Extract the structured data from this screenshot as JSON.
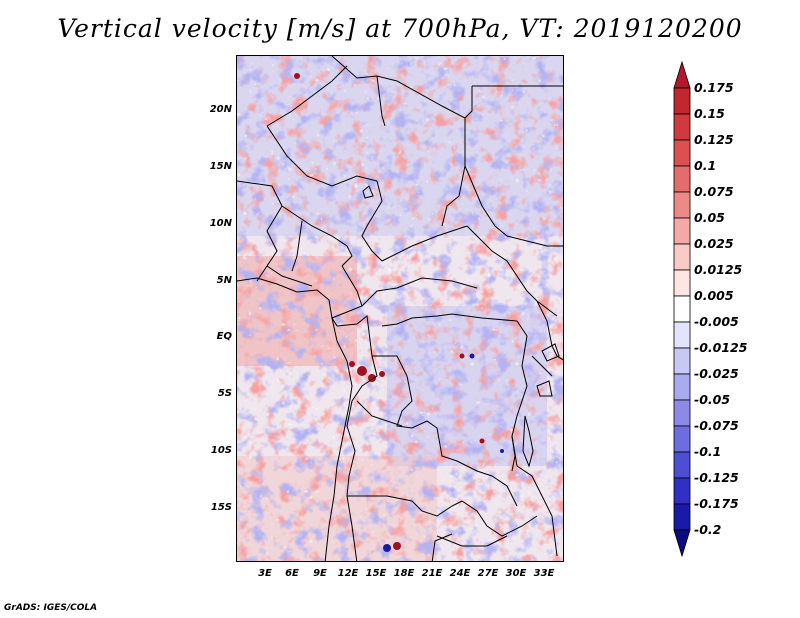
{
  "title": "Vertical velocity [m/s] at 700hPa, VT: 2019120200",
  "credit": "GrADS: IGES/COLA",
  "map": {
    "variable": "Vertical velocity",
    "units": "m/s",
    "level": "700hPa",
    "valid_time": "2019120200",
    "lat_range": [
      -20,
      25
    ],
    "lon_range": [
      0,
      36
    ],
    "lat_labels": [
      "20N",
      "15N",
      "10N",
      "5N",
      "EQ",
      "5S",
      "10S",
      "15S"
    ],
    "lat_values": [
      20,
      15,
      10,
      5,
      0,
      -5,
      -10,
      -15
    ],
    "lon_labels": [
      "3E",
      "6E",
      "9E",
      "12E",
      "15E",
      "18E",
      "21E",
      "24E",
      "27E",
      "30E",
      "33E"
    ],
    "lon_values": [
      3,
      6,
      9,
      12,
      15,
      18,
      21,
      24,
      27,
      30,
      33
    ]
  },
  "colorbar": {
    "labels": [
      "0.175",
      "0.15",
      "0.125",
      "0.1",
      "0.075",
      "0.05",
      "0.025",
      "0.0125",
      "0.005",
      "-0.005",
      "-0.0125",
      "-0.025",
      "-0.05",
      "-0.075",
      "-0.1",
      "-0.125",
      "-0.175",
      "-0.2"
    ],
    "colors": [
      "#b2182b",
      "#c1272d",
      "#cf3a3e",
      "#dc5050",
      "#e46c6c",
      "#ec8a88",
      "#f3aaa6",
      "#f8cbc7",
      "#fde6e3",
      "#ffffff",
      "#e3e3fb",
      "#c8c8f5",
      "#aaaaee",
      "#8b8be6",
      "#6d6dde",
      "#4e4ed4",
      "#3030c4",
      "#1a1aa8",
      "#0c0c80"
    ]
  }
}
